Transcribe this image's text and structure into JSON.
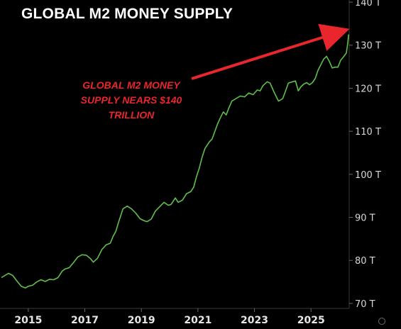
{
  "title": "GLOBAL M2 MONEY SUPPLY",
  "annotation": {
    "lines": [
      "GLOBAL M2 MONEY",
      "SUPPLY NEARS $140",
      "TRILLION"
    ]
  },
  "colors": {
    "background": "#000000",
    "line": "#5fbf4a",
    "annotation": "#e8262b",
    "arrow": "#e8262b"
  },
  "chart_data": {
    "type": "line",
    "title": "GLOBAL M2 MONEY SUPPLY",
    "xlabel": "",
    "ylabel": "",
    "xlim": [
      2014.0,
      2026.35
    ],
    "ylim": [
      69,
      140.5
    ],
    "yticks": [
      {
        "value": 140,
        "label": "140 T"
      },
      {
        "value": 130,
        "label": "130 T"
      },
      {
        "value": 120,
        "label": "120 T"
      },
      {
        "value": 110,
        "label": "110 T"
      },
      {
        "value": 100,
        "label": "100 T"
      },
      {
        "value": 90,
        "label": "90 T"
      },
      {
        "value": 80,
        "label": "80 T"
      },
      {
        "value": 70,
        "label": "70 T"
      }
    ],
    "xticks": [
      {
        "value": 2015,
        "label": "2015"
      },
      {
        "value": 2017,
        "label": "2017"
      },
      {
        "value": 2019,
        "label": "2019"
      },
      {
        "value": 2021,
        "label": "2021"
      },
      {
        "value": 2023,
        "label": "2023"
      },
      {
        "value": 2025,
        "label": "2025"
      }
    ],
    "grid": false,
    "series": [
      {
        "values": [
          [
            2014.05,
            76.0
          ],
          [
            2014.3,
            77.0
          ],
          [
            2014.45,
            76.5
          ],
          [
            2014.6,
            75.2
          ],
          [
            2014.75,
            74.0
          ],
          [
            2014.9,
            73.6
          ],
          [
            2015.0,
            74.0
          ],
          [
            2015.15,
            74.2
          ],
          [
            2015.3,
            75.0
          ],
          [
            2015.45,
            75.5
          ],
          [
            2015.6,
            75.1
          ],
          [
            2015.75,
            75.6
          ],
          [
            2015.9,
            75.5
          ],
          [
            2016.05,
            76.0
          ],
          [
            2016.2,
            77.5
          ],
          [
            2016.3,
            78.0
          ],
          [
            2016.45,
            78.3
          ],
          [
            2016.6,
            79.5
          ],
          [
            2016.75,
            80.8
          ],
          [
            2016.9,
            81.3
          ],
          [
            2017.05,
            81.2
          ],
          [
            2017.2,
            80.4
          ],
          [
            2017.3,
            79.6
          ],
          [
            2017.45,
            80.5
          ],
          [
            2017.6,
            82.5
          ],
          [
            2017.75,
            83.6
          ],
          [
            2017.9,
            84.0
          ],
          [
            2018.0,
            85.6
          ],
          [
            2018.1,
            86.8
          ],
          [
            2018.2,
            89.0
          ],
          [
            2018.35,
            92.0
          ],
          [
            2018.5,
            92.6
          ],
          [
            2018.65,
            92.0
          ],
          [
            2018.8,
            91.0
          ],
          [
            2018.95,
            89.7
          ],
          [
            2019.1,
            89.2
          ],
          [
            2019.2,
            89.0
          ],
          [
            2019.35,
            89.6
          ],
          [
            2019.5,
            91.5
          ],
          [
            2019.65,
            92.5
          ],
          [
            2019.8,
            93.5
          ],
          [
            2019.95,
            92.8
          ],
          [
            2020.05,
            93.0
          ],
          [
            2020.2,
            94.5
          ],
          [
            2020.3,
            93.5
          ],
          [
            2020.45,
            94.0
          ],
          [
            2020.6,
            95.5
          ],
          [
            2020.75,
            96.0
          ],
          [
            2020.85,
            97.0
          ],
          [
            2020.95,
            99.5
          ],
          [
            2021.05,
            101.5
          ],
          [
            2021.15,
            104.0
          ],
          [
            2021.25,
            106.0
          ],
          [
            2021.4,
            107.5
          ],
          [
            2021.5,
            108.2
          ],
          [
            2021.6,
            110.0
          ],
          [
            2021.7,
            111.8
          ],
          [
            2021.8,
            113.2
          ],
          [
            2021.9,
            114.5
          ],
          [
            2022.0,
            113.8
          ],
          [
            2022.1,
            115.5
          ],
          [
            2022.2,
            117.0
          ],
          [
            2022.35,
            117.6
          ],
          [
            2022.5,
            118.2
          ],
          [
            2022.65,
            118.0
          ],
          [
            2022.8,
            118.9
          ],
          [
            2022.95,
            118.5
          ],
          [
            2023.1,
            119.6
          ],
          [
            2023.2,
            119.4
          ],
          [
            2023.3,
            120.6
          ],
          [
            2023.45,
            121.5
          ],
          [
            2023.55,
            121.2
          ],
          [
            2023.7,
            119.0
          ],
          [
            2023.85,
            117.0
          ],
          [
            2024.0,
            117.6
          ],
          [
            2024.1,
            119.4
          ],
          [
            2024.2,
            121.2
          ],
          [
            2024.35,
            121.5
          ],
          [
            2024.45,
            121.7
          ],
          [
            2024.55,
            119.4
          ],
          [
            2024.65,
            120.4
          ],
          [
            2024.75,
            121.0
          ],
          [
            2024.85,
            121.3
          ],
          [
            2024.95,
            120.8
          ],
          [
            2025.05,
            121.3
          ],
          [
            2025.15,
            122.3
          ],
          [
            2025.25,
            124.2
          ],
          [
            2025.35,
            125.5
          ],
          [
            2025.45,
            126.8
          ],
          [
            2025.55,
            127.4
          ],
          [
            2025.65,
            126.2
          ],
          [
            2025.75,
            124.7
          ],
          [
            2025.85,
            124.9
          ],
          [
            2025.95,
            124.9
          ],
          [
            2026.05,
            126.5
          ],
          [
            2026.15,
            127.3
          ],
          [
            2026.25,
            128.2
          ],
          [
            2026.3,
            130.5
          ],
          [
            2026.33,
            132.5
          ]
        ]
      }
    ]
  }
}
